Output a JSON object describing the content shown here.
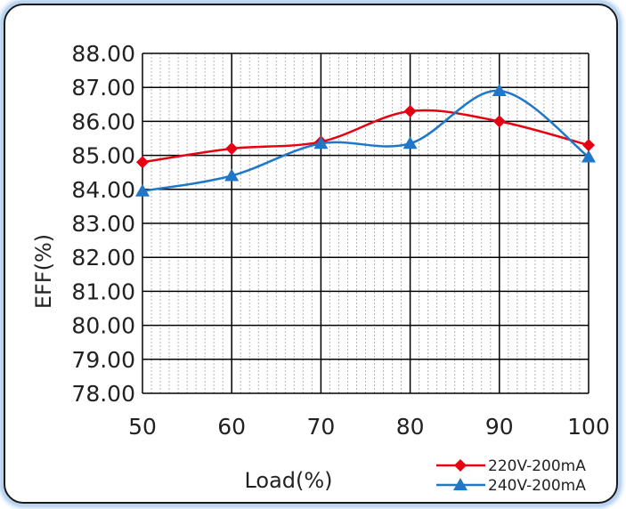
{
  "chart_data": {
    "type": "line",
    "xlabel": "Load(%)",
    "ylabel": "EFF(%)",
    "x": [
      50,
      60,
      70,
      80,
      90,
      100
    ],
    "ylim": [
      78,
      88
    ],
    "yticks": [
      "78.00",
      "79.00",
      "80.00",
      "81.00",
      "82.00",
      "83.00",
      "84.00",
      "85.00",
      "86.00",
      "87.00",
      "88.00"
    ],
    "xticks": [
      "50",
      "60",
      "70",
      "80",
      "90",
      "100"
    ],
    "grid": true,
    "legend_position": "bottom-right",
    "series": [
      {
        "name": "220V-200mA",
        "values": [
          84.8,
          85.2,
          85.4,
          86.3,
          86.0,
          85.3
        ],
        "color": "#e60012",
        "marker": "diamond"
      },
      {
        "name": "240V-200mA",
        "values": [
          83.95,
          84.4,
          85.35,
          85.35,
          86.9,
          84.95
        ],
        "color": "#1f77c9",
        "marker": "triangle"
      }
    ]
  }
}
